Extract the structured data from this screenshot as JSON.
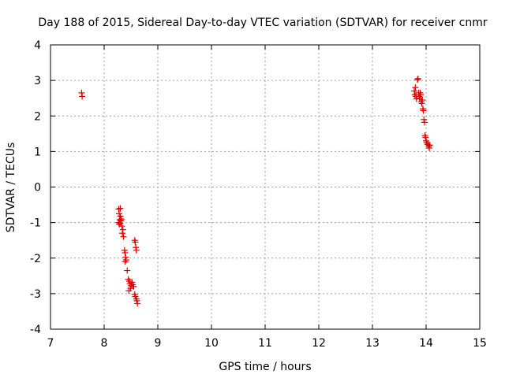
{
  "chart_data": {
    "type": "scatter",
    "title": "Day 188 of 2015, Sidereal Day-to-day VTEC variation (SDTVAR) for receiver cnmr",
    "xlabel": "GPS time / hours",
    "ylabel": "SDTVAR / TECUs",
    "xlim": [
      7,
      15
    ],
    "ylim": [
      -4,
      4
    ],
    "xticks": [
      7,
      8,
      9,
      10,
      11,
      12,
      13,
      14,
      15
    ],
    "yticks": [
      -4,
      -3,
      -2,
      -1,
      0,
      1,
      2,
      3,
      4
    ],
    "xtick_labels": [
      "7",
      "8",
      "9",
      "10",
      "11",
      "12",
      "13",
      "14",
      "15"
    ],
    "ytick_labels": [
      "-4",
      "-3",
      "-2",
      "-1",
      "0",
      "1",
      "2",
      "3",
      "4"
    ],
    "grid": true,
    "marker": "+",
    "color": "#e00000",
    "series": [
      {
        "name": "SDTVAR",
        "points": [
          [
            7.58,
            2.65
          ],
          [
            7.59,
            2.55
          ],
          [
            8.27,
            -0.62
          ],
          [
            8.3,
            -0.6
          ],
          [
            8.28,
            -0.75
          ],
          [
            8.3,
            -0.82
          ],
          [
            8.29,
            -0.92
          ],
          [
            8.27,
            -1.0
          ],
          [
            8.28,
            -1.05
          ],
          [
            8.3,
            -1.02
          ],
          [
            8.31,
            -0.95
          ],
          [
            8.32,
            -0.9
          ],
          [
            8.33,
            -1.1
          ],
          [
            8.35,
            -1.2
          ],
          [
            8.34,
            -1.3
          ],
          [
            8.36,
            -1.4
          ],
          [
            8.38,
            -1.78
          ],
          [
            8.39,
            -1.85
          ],
          [
            8.4,
            -1.98
          ],
          [
            8.41,
            -2.05
          ],
          [
            8.39,
            -2.1
          ],
          [
            8.43,
            -2.35
          ],
          [
            8.45,
            -2.6
          ],
          [
            8.47,
            -2.65
          ],
          [
            8.48,
            -2.72
          ],
          [
            8.5,
            -2.78
          ],
          [
            8.52,
            -2.68
          ],
          [
            8.49,
            -2.85
          ],
          [
            8.46,
            -2.92
          ],
          [
            8.53,
            -2.75
          ],
          [
            8.55,
            -2.8
          ],
          [
            8.57,
            -1.5
          ],
          [
            8.58,
            -1.55
          ],
          [
            8.59,
            -1.7
          ],
          [
            8.6,
            -1.78
          ],
          [
            8.57,
            -3.02
          ],
          [
            8.58,
            -3.08
          ],
          [
            8.6,
            -3.15
          ],
          [
            8.61,
            -3.2
          ],
          [
            8.62,
            -3.28
          ],
          [
            13.78,
            2.7
          ],
          [
            13.8,
            2.8
          ],
          [
            13.79,
            2.6
          ],
          [
            13.81,
            2.55
          ],
          [
            13.82,
            2.48
          ],
          [
            13.84,
            3.02
          ],
          [
            13.85,
            3.05
          ],
          [
            13.86,
            2.65
          ],
          [
            13.87,
            2.55
          ],
          [
            13.88,
            2.5
          ],
          [
            13.89,
            2.65
          ],
          [
            13.9,
            2.6
          ],
          [
            13.91,
            2.4
          ],
          [
            13.92,
            2.35
          ],
          [
            13.93,
            2.45
          ],
          [
            13.94,
            2.2
          ],
          [
            13.95,
            2.15
          ],
          [
            13.96,
            1.9
          ],
          [
            13.97,
            1.82
          ],
          [
            13.98,
            1.45
          ],
          [
            13.99,
            1.4
          ],
          [
            14.0,
            1.3
          ],
          [
            14.01,
            1.25
          ],
          [
            14.03,
            1.2
          ],
          [
            14.05,
            1.15
          ],
          [
            14.06,
            1.1
          ],
          [
            14.07,
            1.18
          ]
        ]
      }
    ]
  }
}
